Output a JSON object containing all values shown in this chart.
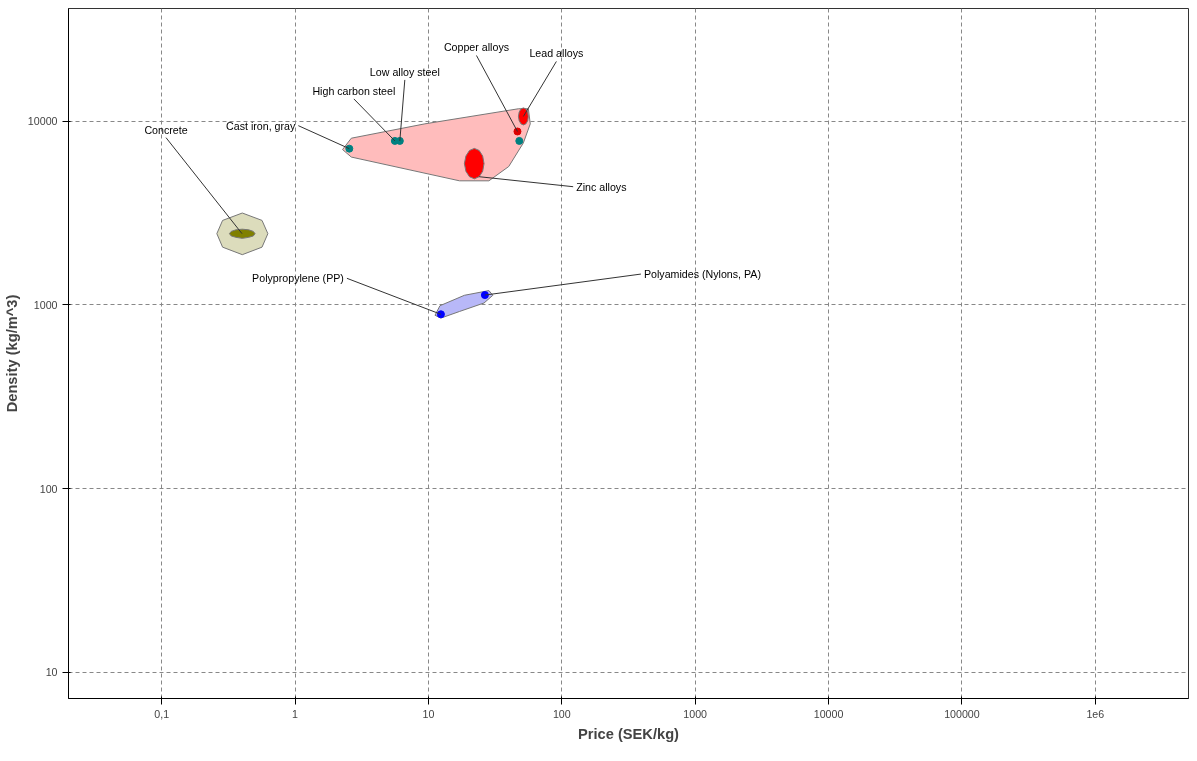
{
  "chart_data": {
    "type": "scatter",
    "xlabel": "Price (SEK/kg)",
    "ylabel": "Density (kg/m^3)",
    "log": "xy",
    "grid": true,
    "xlim": [
      0.02,
      5000000
    ],
    "ylim": [
      7.2,
      41000
    ],
    "xticks": [
      {
        "value": 0.1,
        "label": "0,1"
      },
      1,
      10,
      100,
      1000,
      10000,
      100000,
      {
        "value": 1000000,
        "label": "1e6"
      }
    ],
    "yticks": [
      10,
      100,
      1000,
      10000
    ],
    "series": [
      {
        "type": "area",
        "color": "#ffbcbc",
        "x": [
          2.27,
          2.64,
          9.4,
          47.3,
          56.1,
          58,
          51.5,
          40,
          28.4,
          17.1,
          2.64
        ],
        "values": [
          7000,
          8070,
          9660,
          11670,
          11670,
          9660,
          7610,
          5660,
          4730,
          4730,
          6370
        ]
      },
      {
        "type": "area",
        "color": "#b8b8f8",
        "x": [
          11.2,
          12.2,
          18.6,
          28.4,
          30.4,
          26.1,
          17.1,
          12.4
        ],
        "values": [
          877,
          989,
          1127,
          1195,
          1127,
          1023,
          920,
          847
        ]
      },
      {
        "type": "area",
        "color": "#dcdcbc",
        "x": [
          0.259,
          0.286,
          0.402,
          0.565,
          0.625,
          0.565,
          0.402,
          0.286
        ],
        "values": [
          2440,
          2880,
          3160,
          2880,
          2440,
          2060,
          1875,
          2060
        ]
      },
      {
        "type": "area",
        "color": "#808000",
        "x": [
          0.501,
          0.486,
          0.449,
          0.402,
          0.36,
          0.332,
          0.322,
          0.332,
          0.36,
          0.402,
          0.449,
          0.486
        ],
        "values": [
          2440,
          2510,
          2560,
          2580,
          2560,
          2510,
          2440,
          2370,
          2330,
          2300,
          2330,
          2370
        ]
      },
      {
        "type": "area",
        "color": "#ff0000",
        "x": [
          56.1,
          55.5,
          53.8,
          51.5,
          49.4,
          47.9,
          47.3,
          47.9,
          49.4,
          51.5,
          53.8,
          55.5
        ],
        "values": [
          10600,
          11200,
          11640,
          11800,
          11640,
          11200,
          10600,
          10050,
          9660,
          9530,
          9660,
          10050
        ]
      },
      {
        "type": "area",
        "color": "#ff0000",
        "x": [
          26.1,
          25.5,
          24.0,
          22.1,
          20.3,
          19.1,
          18.6,
          19.1,
          20.3,
          22.1,
          24.0,
          25.5
        ],
        "values": [
          5870,
          6460,
          6920,
          7100,
          6920,
          6460,
          5870,
          5330,
          4980,
          4850,
          4980,
          5330
        ]
      },
      {
        "marker": "circle",
        "x": [
          2.55,
          5.6,
          6.1,
          48,
          46.5,
          12.4,
          26.5
        ],
        "values": [
          7080,
          7800,
          7800,
          7800,
          8780,
          888,
          1130
        ],
        "colors": [
          "#008080",
          "#008080",
          "#008080",
          "#008080",
          "#dd0000",
          "#0000ff",
          "#0000ff"
        ]
      }
    ],
    "annotations": [
      {
        "text": "Concrete",
        "x": 0.4,
        "y": 2440
      },
      {
        "text": "Cast iron, gray",
        "x": 2.55,
        "y": 7080
      },
      {
        "text": "High carbon steel",
        "x": 5.6,
        "y": 7800
      },
      {
        "text": "Low alloy steel",
        "x": 6.1,
        "y": 7800
      },
      {
        "text": "Copper alloys",
        "x": 46.5,
        "y": 8780
      },
      {
        "text": "Lead alloys",
        "x": 51.5,
        "y": 10600
      },
      {
        "text": "Zinc alloys",
        "x": 24.0,
        "y": 4980
      },
      {
        "text": "Polypropylene (PP)",
        "x": 12.4,
        "y": 888
      },
      {
        "text": "Polyamides (Nylons, PA)",
        "x": 26.5,
        "y": 1130
      }
    ]
  }
}
